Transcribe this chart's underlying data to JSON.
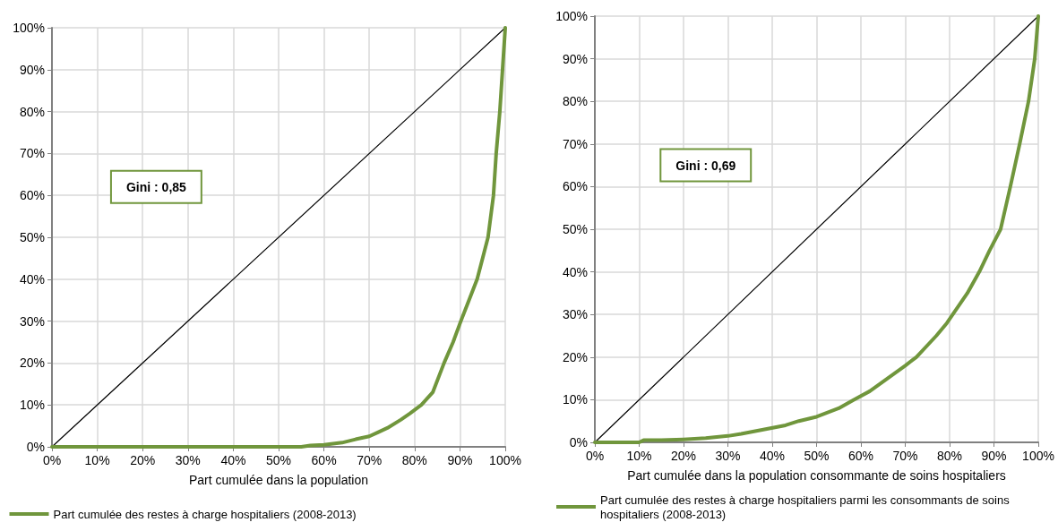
{
  "chart_data": [
    {
      "type": "line",
      "xlabel": "Part cumulée dans la population",
      "annotations": [
        "Gini : 0,85"
      ],
      "legend": "bottom",
      "grid": true,
      "marker": "none",
      "line_style": "solid",
      "xlim": [
        0,
        100
      ],
      "ylim": [
        0,
        100
      ],
      "xticks": [
        {
          "value": 0,
          "label": "0%"
        },
        {
          "value": 10,
          "label": "10%"
        },
        {
          "value": 20,
          "label": "20%"
        },
        {
          "value": 30,
          "label": "30%"
        },
        {
          "value": 40,
          "label": "40%"
        },
        {
          "value": 50,
          "label": "50%"
        },
        {
          "value": 60,
          "label": "60%"
        },
        {
          "value": 70,
          "label": "70%"
        },
        {
          "value": 80,
          "label": "80%"
        },
        {
          "value": 90,
          "label": "90%"
        },
        {
          "value": 100,
          "label": "100%"
        }
      ],
      "yticks": [
        {
          "value": 0,
          "label": "0%"
        },
        {
          "value": 10,
          "label": "10%"
        },
        {
          "value": 20,
          "label": "20%"
        },
        {
          "value": 30,
          "label": "30%"
        },
        {
          "value": 40,
          "label": "40%"
        },
        {
          "value": 50,
          "label": "50%"
        },
        {
          "value": 60,
          "label": "60%"
        },
        {
          "value": 70,
          "label": "70%"
        },
        {
          "value": 80,
          "label": "80%"
        },
        {
          "value": 90,
          "label": "90%"
        },
        {
          "value": 100,
          "label": "100%"
        }
      ],
      "series": [
        {
          "color": "#000000",
          "x": [
            0,
            100
          ],
          "values": [
            0,
            100
          ]
        },
        {
          "name": "Part cumulée des restes à charge hospitaliers (2008-2013)",
          "color": "#70963c",
          "x": [
            0,
            10,
            20,
            30,
            40,
            50,
            55,
            57,
            60,
            64,
            67,
            70,
            72,
            74,
            77,
            79,
            81.5,
            84,
            86.5,
            88.5,
            90.2,
            92,
            93.8,
            95,
            96.2,
            97.4,
            98,
            98.8,
            99.4,
            100
          ],
          "values": [
            0,
            0,
            0,
            0,
            0,
            0,
            0,
            0.3,
            0.5,
            1,
            1.8,
            2.5,
            3.5,
            4.5,
            6.5,
            8,
            10,
            13,
            20,
            25,
            30,
            35,
            40,
            45,
            50,
            60,
            70,
            80,
            90,
            100
          ]
        }
      ]
    },
    {
      "type": "line",
      "xlabel": "Part cumulée dans la population consommante de soins hospitaliers",
      "annotations": [
        "Gini : 0,69"
      ],
      "legend": "bottom",
      "grid": true,
      "marker": "none",
      "line_style": "solid",
      "xlim": [
        0,
        100
      ],
      "ylim": [
        0,
        100
      ],
      "xticks": [
        {
          "value": 0,
          "label": "0%"
        },
        {
          "value": 10,
          "label": "10%"
        },
        {
          "value": 20,
          "label": "20%"
        },
        {
          "value": 30,
          "label": "30%"
        },
        {
          "value": 40,
          "label": "40%"
        },
        {
          "value": 50,
          "label": "50%"
        },
        {
          "value": 60,
          "label": "60%"
        },
        {
          "value": 70,
          "label": "70%"
        },
        {
          "value": 80,
          "label": "80%"
        },
        {
          "value": 90,
          "label": "90%"
        },
        {
          "value": 100,
          "label": "100%"
        }
      ],
      "yticks": [
        {
          "value": 0,
          "label": "0%"
        },
        {
          "value": 10,
          "label": "10%"
        },
        {
          "value": 20,
          "label": "20%"
        },
        {
          "value": 30,
          "label": "30%"
        },
        {
          "value": 40,
          "label": "40%"
        },
        {
          "value": 50,
          "label": "50%"
        },
        {
          "value": 60,
          "label": "60%"
        },
        {
          "value": 70,
          "label": "70%"
        },
        {
          "value": 80,
          "label": "80%"
        },
        {
          "value": 90,
          "label": "90%"
        },
        {
          "value": 100,
          "label": "100%"
        }
      ],
      "series": [
        {
          "color": "#000000",
          "x": [
            0,
            100
          ],
          "values": [
            0,
            100
          ]
        },
        {
          "name": "Part cumulée des restes à charge hospitaliers parmi les consommants de soins hospitaliers (2008-2013)",
          "color": "#70963c",
          "x": [
            0,
            5,
            10,
            11,
            15,
            20,
            25,
            30,
            33,
            38,
            43,
            46,
            50,
            55,
            58.4,
            62,
            66,
            70,
            72.5,
            77,
            79.4,
            84,
            86.7,
            89,
            91.5,
            93.7,
            95.8,
            97.8,
            99.2,
            100
          ],
          "values": [
            0,
            0,
            0,
            0.5,
            0.5,
            0.7,
            1,
            1.5,
            2,
            3,
            4,
            5,
            6,
            8,
            10,
            12,
            15,
            18,
            20,
            25,
            28,
            35,
            40,
            45,
            50,
            60,
            70,
            80,
            90,
            100
          ]
        }
      ]
    }
  ]
}
